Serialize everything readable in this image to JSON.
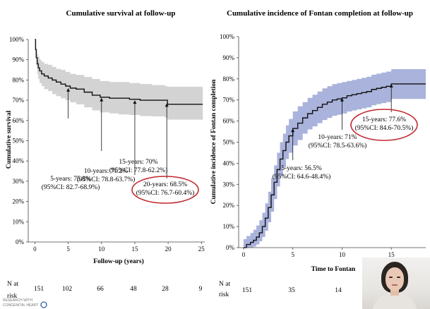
{
  "chart_data": [
    {
      "type": "line",
      "title": "Cumulative survival at follow-up",
      "xlabel": "Follow-up (years)",
      "ylabel": "Cumulative survival",
      "xlim": [
        -1,
        25.5
      ],
      "ylim": [
        0,
        100
      ],
      "x_ticks": [
        "0",
        "5",
        "10",
        "15",
        "20",
        "25"
      ],
      "x_tick_values": [
        0,
        5,
        10,
        15,
        20,
        25
      ],
      "y_ticks": [
        "0%",
        "10%",
        "20%",
        "30%",
        "40%",
        "50%",
        "60%",
        "70%",
        "80%",
        "90%",
        "100%"
      ],
      "y_tick_values": [
        0,
        10,
        20,
        30,
        40,
        50,
        60,
        70,
        80,
        90,
        100
      ],
      "grid": false,
      "ci_color": "#d3d3d3",
      "line_color": "#111111",
      "highlight_color": "#c0282e",
      "series": [
        {
          "x": [
            0,
            0.1,
            0.2,
            0.35,
            0.5,
            0.7,
            1.0,
            1.4,
            2.0,
            2.6,
            3.2,
            3.9,
            4.6,
            5.3,
            6.2,
            7.4,
            8.6,
            9.8,
            11.2,
            12.6,
            14.2,
            15.8,
            17.6,
            19.5,
            19.9,
            25.2
          ],
          "y": [
            100,
            95,
            91,
            88,
            86,
            84.5,
            83,
            82,
            81,
            80,
            79,
            78,
            77,
            76,
            75.5,
            74,
            72.5,
            71.5,
            71,
            71,
            70.5,
            70,
            70,
            70,
            68,
            68
          ],
          "ci_upper": [
            100,
            98,
            95,
            93,
            91.5,
            90,
            89,
            88,
            87.5,
            86.5,
            85.5,
            85,
            84,
            83,
            82.5,
            81.5,
            80.5,
            79.5,
            79,
            79,
            78.5,
            78,
            77.5,
            77,
            76.7,
            76.7
          ],
          "ci_lower": [
            100,
            92,
            87,
            83,
            80.5,
            78.5,
            77,
            75.5,
            74.5,
            73,
            72,
            71,
            70,
            69,
            68,
            66.5,
            65,
            64,
            63.5,
            63,
            62.7,
            62.2,
            62,
            61.5,
            60.4,
            60.4
          ]
        }
      ],
      "annotations": [
        {
          "x": 5,
          "y": 76,
          "lines": [
            "5-years: 75.8%",
            "(95%CI: 82.7-68.9%)"
          ],
          "circled": false
        },
        {
          "x": 10,
          "y": 71.2,
          "lines": [
            "10-years: 71.2%",
            "(95%CI: 78.8-63.7%)"
          ],
          "circled": false
        },
        {
          "x": 15,
          "y": 70,
          "lines": [
            "15-years: 70%",
            "(95%CI: 77.8-62.2%)"
          ],
          "circled": false
        },
        {
          "x": 19.8,
          "y": 68.5,
          "lines": [
            "20-years: 68.5%",
            "(95%CI: 76.7-60.4%)"
          ],
          "circled": true
        }
      ]
    },
    {
      "type": "line",
      "title": "Cumulative incidence of Fontan completion at follow-up",
      "xlabel": "Time to Fontan",
      "ylabel": "Cumulative incidence of Fontan completion",
      "xlim": [
        -0.5,
        18.5
      ],
      "ylim": [
        0,
        100
      ],
      "x_ticks": [
        "0",
        "5",
        "10",
        "15"
      ],
      "x_tick_values": [
        0,
        5,
        10,
        15
      ],
      "y_ticks": [
        "0%",
        "10%",
        "20%",
        "30%",
        "40%",
        "50%",
        "60%",
        "70%",
        "80%",
        "90%",
        "100%"
      ],
      "y_tick_values": [
        0,
        10,
        20,
        30,
        40,
        50,
        60,
        70,
        80,
        90,
        100
      ],
      "grid": false,
      "ci_color": "#aab3dc",
      "line_color": "#111111",
      "highlight_color": "#c0282e",
      "series": [
        {
          "x": [
            0,
            0.3,
            0.7,
            1.0,
            1.3,
            1.6,
            1.9,
            2.2,
            2.5,
            2.8,
            3.1,
            3.4,
            3.7,
            4.0,
            4.3,
            4.6,
            5.0,
            5.5,
            6.0,
            6.5,
            7.0,
            7.5,
            8.0,
            8.5,
            9.0,
            9.5,
            10.0,
            10.5,
            11.0,
            11.5,
            12.0,
            12.5,
            13.0,
            13.5,
            14.0,
            14.5,
            15.0,
            15.5,
            16.0,
            16.5,
            17.0,
            17.5,
            18.0,
            18.5
          ],
          "y": [
            0,
            1.5,
            2.5,
            3.5,
            5,
            7,
            10,
            14,
            19,
            25,
            31,
            37,
            42,
            46,
            50,
            53,
            56.5,
            59,
            61.5,
            63.5,
            65,
            66.5,
            68,
            69,
            70,
            70.5,
            71,
            72,
            72.5,
            73,
            73.5,
            74,
            75,
            75.5,
            76,
            76.5,
            77.6,
            77.6,
            77.6,
            77.6,
            77.6,
            77.6,
            77.6,
            77.6
          ],
          "ci_upper": [
            4,
            5.5,
            7,
            8.5,
            10.5,
            13,
            16.5,
            21,
            26.5,
            33,
            39,
            45,
            50,
            54,
            58,
            61,
            64.6,
            67,
            69,
            71,
            72.5,
            74,
            75.5,
            76.5,
            77.5,
            78,
            78.5,
            79,
            79.5,
            80,
            80.5,
            81,
            82,
            82.5,
            83,
            83.5,
            84.6,
            84.6,
            84.6,
            84.6,
            84.6,
            84.6,
            84.6,
            84.6
          ],
          "ci_lower": [
            0,
            0,
            0,
            0.5,
            1.5,
            3,
            5,
            8,
            12,
            17,
            23,
            29,
            34,
            38,
            42,
            45,
            48.4,
            51,
            54,
            56,
            57.5,
            59,
            60.5,
            61.5,
            62.5,
            63,
            63.6,
            64.5,
            65,
            65.5,
            66,
            66.5,
            67.5,
            68,
            68.5,
            69,
            70.5,
            70.5,
            70.5,
            70.5,
            70.5,
            70.5,
            70.5,
            70.5
          ]
        }
      ],
      "annotations": [
        {
          "x": 5,
          "y": 56.5,
          "lines": [
            "5-years: 56.5%",
            "(95%CI: 64.6-48.4%)"
          ],
          "circled": false
        },
        {
          "x": 10,
          "y": 71,
          "lines": [
            "10-years: 71%",
            "(95%CI: 78.5-63.6%)"
          ],
          "circled": false
        },
        {
          "x": 15,
          "y": 77.6,
          "lines": [
            "15-years: 77.6%",
            "(95%CI: 84.6-70.5%)"
          ],
          "circled": true
        }
      ]
    }
  ],
  "risk_tables": [
    {
      "label_line1": "N at",
      "label_line2": "risk",
      "values": [
        "151",
        "102",
        "66",
        "48",
        "28",
        "9"
      ]
    },
    {
      "label_line1": "N at",
      "label_line2": "risk",
      "values": [
        "151",
        "35",
        "14"
      ]
    }
  ],
  "logo": {
    "text_line1": "RESEARCH WITH",
    "text_line2": "CONGENITAL HEART",
    "mark": "c"
  }
}
